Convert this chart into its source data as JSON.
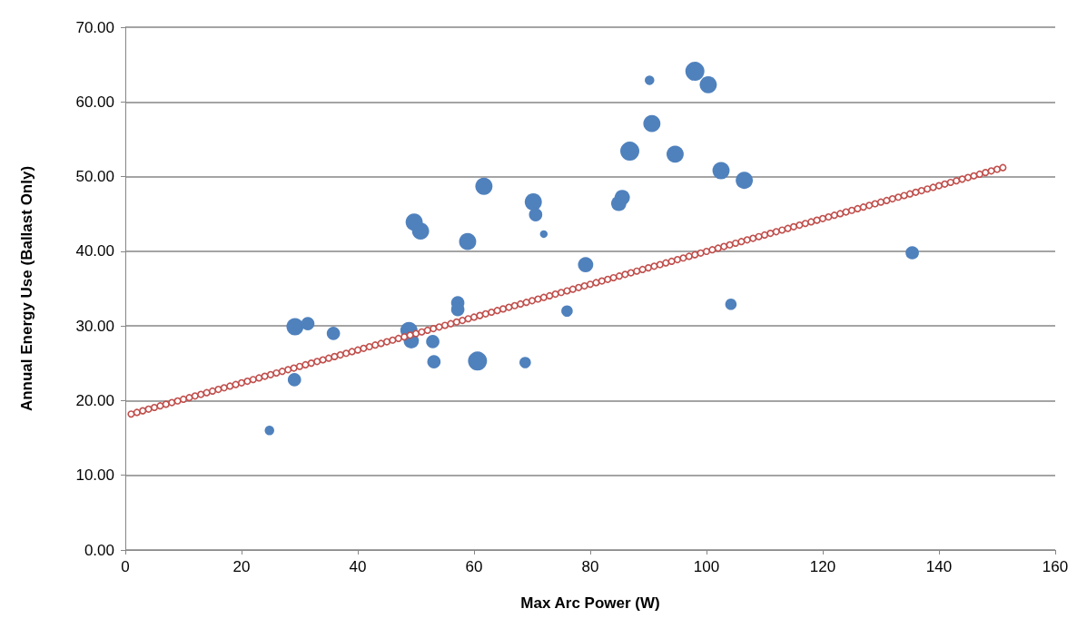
{
  "chart_data": {
    "type": "bubble",
    "xlabel": "Max Arc Power (W)",
    "ylabel": "Annual Energy Use (Ballast Only)",
    "xlim": [
      0,
      160
    ],
    "xticks": [
      0,
      20,
      40,
      60,
      80,
      100,
      120,
      140,
      160
    ],
    "ylim": [
      0,
      70
    ],
    "yticks": [
      {
        "value": 0,
        "label": "0.00"
      },
      {
        "value": 10,
        "label": "10.00"
      },
      {
        "value": 20,
        "label": "20.00"
      },
      {
        "value": 30,
        "label": "30.00"
      },
      {
        "value": 40,
        "label": "40.00"
      },
      {
        "value": 50,
        "label": "50.00"
      },
      {
        "value": 60,
        "label": "60.00"
      },
      {
        "value": 70,
        "label": "70.00"
      }
    ],
    "grid": "y",
    "marker": "circle",
    "series": [
      {
        "type": "bubble",
        "color": "#4f81bd",
        "x": [
          24.8,
          29.1,
          29.2,
          31.4,
          35.8,
          48.8,
          49.2,
          49.7,
          50.8,
          52.9,
          53.1,
          57.2,
          57.2,
          58.9,
          60.6,
          61.7,
          70.2,
          70.6,
          72.0,
          68.8,
          76.0,
          79.2,
          84.9,
          85.5,
          86.8,
          90.2,
          90.6,
          94.6,
          98.0,
          100.3,
          102.5,
          104.2,
          106.5,
          135.4
        ],
        "values": [
          16.0,
          22.8,
          29.9,
          30.3,
          29.0,
          29.4,
          28.0,
          43.9,
          42.7,
          27.9,
          25.2,
          33.1,
          32.2,
          41.3,
          25.3,
          48.7,
          46.6,
          44.9,
          42.3,
          25.1,
          32.0,
          38.2,
          46.4,
          47.2,
          53.4,
          62.9,
          57.1,
          53.0,
          64.1,
          62.3,
          50.8,
          32.9,
          49.5,
          39.8
        ],
        "sizes": [
          0.25,
          0.49,
          0.81,
          0.49,
          0.49,
          0.81,
          0.64,
          0.81,
          0.81,
          0.49,
          0.49,
          0.49,
          0.49,
          0.81,
          1,
          0.81,
          0.81,
          0.49,
          0.16,
          0.36,
          0.36,
          0.64,
          0.64,
          0.64,
          1,
          0.25,
          0.81,
          0.81,
          1,
          0.81,
          0.81,
          0.36,
          0.81,
          0.49
        ]
      },
      {
        "type": "scatter",
        "color": "#c0504d",
        "x": [
          1,
          2,
          3,
          4,
          5,
          6,
          7,
          8,
          9,
          10,
          11,
          12,
          13,
          14,
          15,
          16,
          17,
          18,
          19,
          20,
          21,
          22,
          23,
          24,
          25,
          26,
          27,
          28,
          29,
          30,
          31,
          32,
          33,
          34,
          35,
          36,
          37,
          38,
          39,
          40,
          41,
          42,
          43,
          44,
          45,
          46,
          47,
          48,
          49,
          50,
          51,
          52,
          53,
          54,
          55,
          56,
          57,
          58,
          59,
          60,
          61,
          62,
          63,
          64,
          65,
          66,
          67,
          68,
          69,
          70,
          71,
          72,
          73,
          74,
          75,
          76,
          77,
          78,
          79,
          80,
          81,
          82,
          83,
          84,
          85,
          86,
          87,
          88,
          89,
          90,
          91,
          92,
          93,
          94,
          95,
          96,
          97,
          98,
          99,
          100,
          101,
          102,
          103,
          104,
          105,
          106,
          107,
          108,
          109,
          110,
          111,
          112,
          113,
          114,
          115,
          116,
          117,
          118,
          119,
          120,
          121,
          122,
          123,
          124,
          125,
          126,
          127,
          128,
          129,
          130,
          131,
          132,
          133,
          134,
          135,
          136,
          137,
          138,
          139,
          140,
          141,
          142,
          143,
          144,
          145,
          146,
          147,
          148,
          149,
          150,
          151
        ],
        "values": [
          18.2,
          18.42,
          18.64,
          18.86,
          19.08,
          19.3,
          19.52,
          19.74,
          19.96,
          20.18,
          20.4,
          20.62,
          20.84,
          21.06,
          21.28,
          21.5,
          21.72,
          21.94,
          22.16,
          22.38,
          22.6,
          22.82,
          23.04,
          23.26,
          23.48,
          23.7,
          23.92,
          24.14,
          24.36,
          24.58,
          24.8,
          25.02,
          25.24,
          25.46,
          25.68,
          25.9,
          26.12,
          26.34,
          26.56,
          26.78,
          27,
          27.22,
          27.44,
          27.66,
          27.88,
          28.1,
          28.32,
          28.54,
          28.76,
          28.98,
          29.2,
          29.42,
          29.64,
          29.86,
          30.08,
          30.3,
          30.52,
          30.74,
          30.96,
          31.18,
          31.4,
          31.62,
          31.84,
          32.06,
          32.28,
          32.5,
          32.72,
          32.94,
          33.16,
          33.38,
          33.6,
          33.82,
          34.04,
          34.26,
          34.48,
          34.7,
          34.92,
          35.14,
          35.36,
          35.58,
          35.8,
          36.02,
          36.24,
          36.46,
          36.68,
          36.9,
          37.12,
          37.34,
          37.56,
          37.78,
          38,
          38.22,
          38.44,
          38.66,
          38.88,
          39.1,
          39.32,
          39.54,
          39.76,
          39.98,
          40.2,
          40.42,
          40.64,
          40.86,
          41.08,
          41.3,
          41.52,
          41.74,
          41.96,
          42.18,
          42.4,
          42.62,
          42.84,
          43.06,
          43.28,
          43.5,
          43.72,
          43.94,
          44.16,
          44.38,
          44.6,
          44.82,
          45.04,
          45.26,
          45.48,
          45.7,
          45.92,
          46.14,
          46.36,
          46.58,
          46.8,
          47.02,
          47.24,
          47.46,
          47.68,
          47.9,
          48.12,
          48.34,
          48.56,
          48.78,
          49,
          49.22,
          49.44,
          49.66,
          49.88,
          50.1,
          50.32,
          50.54,
          50.76,
          50.98,
          51.2
        ]
      }
    ]
  }
}
